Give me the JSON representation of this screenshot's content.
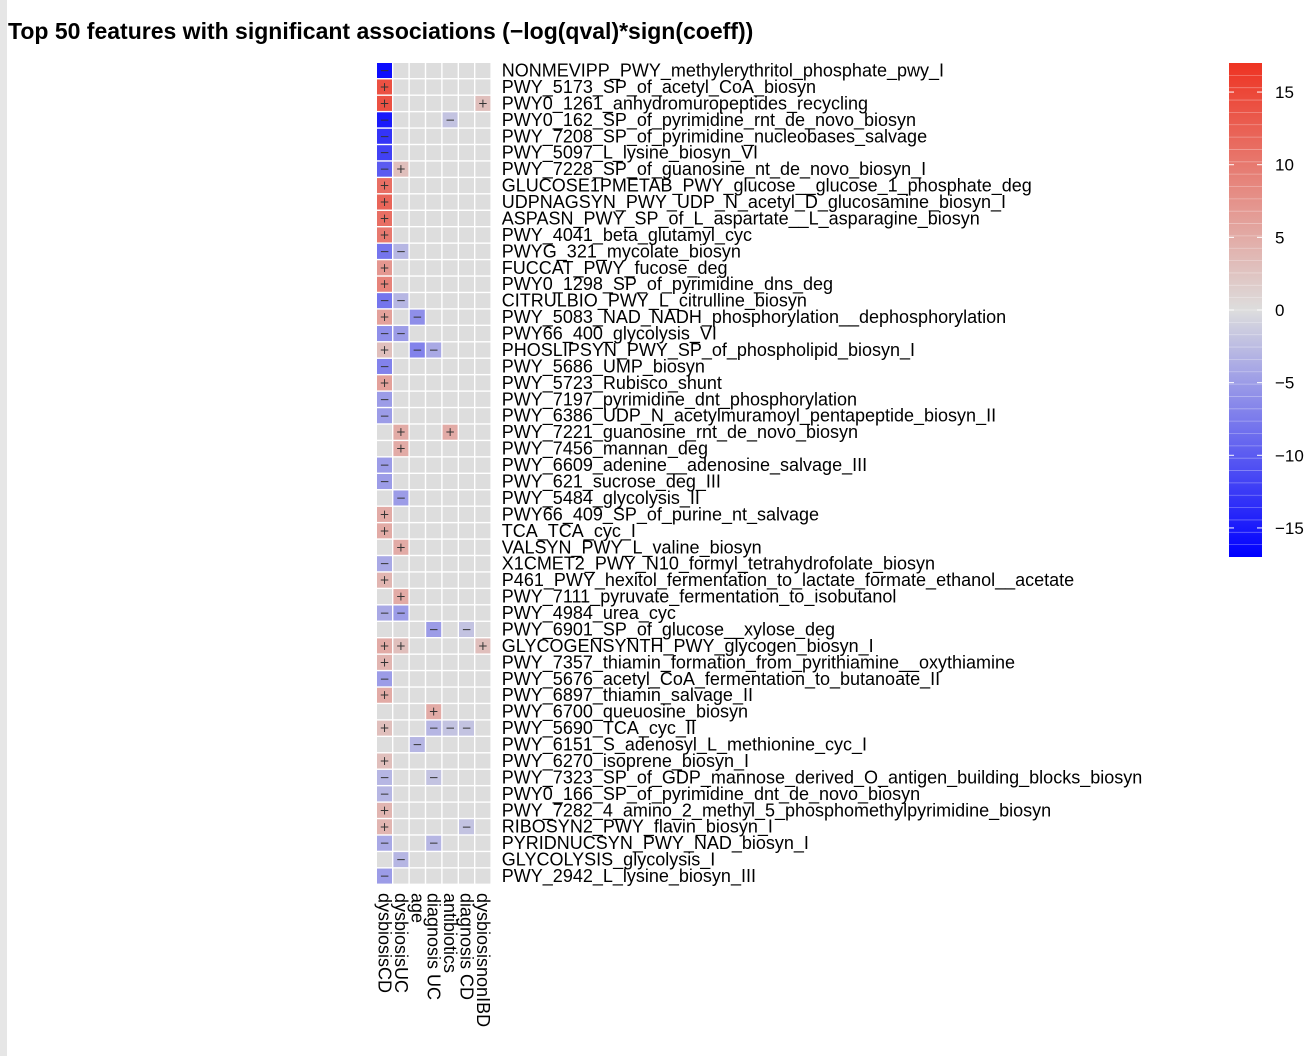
{
  "title": "Top 50 features with significant associations (−log(qval)*sign(coeff))",
  "chart_data": {
    "type": "heatmap",
    "columns": [
      "dysbiosisCD",
      "dysbiosisUC",
      "age",
      "diagnosis UC",
      "antibiotics",
      "diagnosis CD",
      "dysbiosisnonIBD"
    ],
    "rows": [
      "NONMEVIPP_PWY_methylerythritol_phosphate_pwy_I",
      "PWY_5173_SP_of_acetyl_CoA_biosyn",
      "PWY0_1261_anhydromuropeptides_recycling",
      "PWY0_162_SP_of_pyrimidine_rnt_de_novo_biosyn",
      "PWY_7208_SP_of_pyrimidine_nucleobases_salvage",
      "PWY_5097_L_lysine_biosyn_VI",
      "PWY_7228_SP_of_guanosine_nt_de_novo_biosyn_I",
      "GLUCOSE1PMETAB_PWY_glucose__glucose_1_phosphate_deg",
      "UDPNAGSYN_PWY_UDP_N_acetyl_D_glucosamine_biosyn_I",
      "ASPASN_PWY_SP_of_L_aspartate__L_asparagine_biosyn",
      "PWY_4041_beta_glutamyl_cyc",
      "PWYG_321_mycolate_biosyn",
      "FUCCAT_PWY_fucose_deg",
      "PWY0_1298_SP_of_pyrimidine_dns_deg",
      "CITRULBIO_PWY_L_citrulline_biosyn",
      "PWY_5083_NAD_NADH_phosphorylation__dephosphorylation",
      "PWY66_400_glycolysis_VI",
      "PHOSLIPSYN_PWY_SP_of_phospholipid_biosyn_I",
      "PWY_5686_UMP_biosyn",
      "PWY_5723_Rubisco_shunt",
      "PWY_7197_pyrimidine_dnt_phosphorylation",
      "PWY_6386_UDP_N_acetylmuramoyl_pentapeptide_biosyn_II",
      "PWY_7221_guanosine_rnt_de_novo_biosyn",
      "PWY_7456_mannan_deg",
      "PWY_6609_adenine__adenosine_salvage_III",
      "PWY_621_sucrose_deg_III",
      "PWY_5484_glycolysis_II",
      "PWY66_409_SP_of_purine_nt_salvage",
      "TCA_TCA_cyc_I",
      "VALSYN_PWY_L_valine_biosyn",
      "X1CMET2_PWY_N10_formyl_tetrahydrofolate_biosyn",
      "P461_PWY_hexitol_fermentation_to_lactate_formate_ethanol__acetate",
      "PWY_7111_pyruvate_fermentation_to_isobutanol",
      "PWY_4984_urea_cyc",
      "PWY_6901_SP_of_glucose__xylose_deg",
      "GLYCOGENSYNTH_PWY_glycogen_biosyn_I",
      "PWY_7357_thiamin_formation_from_pyrithiamine__oxythiamine",
      "PWY_5676_acetyl_CoA_fermentation_to_butanoate_II",
      "PWY_6897_thiamin_salvage_II",
      "PWY_6700_queuosine_biosyn",
      "PWY_5690_TCA_cyc_II",
      "PWY_6151_S_adenosyl_L_methionine_cyc_I",
      "PWY_6270_isoprene_biosyn_I",
      "PWY_7323_SP_of_GDP_mannose_derived_O_antigen_building_blocks_biosyn",
      "PWY0_166_SP_of_pyrimidine_dnt_de_novo_biosyn",
      "PWY_7282_4_amino_2_methyl_5_phosphomethylpyrimidine_biosyn",
      "RIBOSYN2_PWY_flavin_biosyn_I",
      "PYRIDNUCSYN_PWY_NAD_biosyn_I",
      "GLYCOLYSIS_glycolysis_I",
      "PWY_2942_L_lysine_biosyn_III"
    ],
    "values": [
      [
        -16,
        0,
        0,
        0,
        0,
        0,
        0
      ],
      [
        14,
        0,
        0,
        0,
        0,
        0,
        0
      ],
      [
        14,
        0,
        0,
        0,
        0,
        0,
        3
      ],
      [
        -15,
        0,
        0,
        0,
        -2,
        0,
        0
      ],
      [
        -13,
        0,
        0,
        0,
        0,
        0,
        0
      ],
      [
        -12,
        0,
        0,
        0,
        0,
        0,
        0
      ],
      [
        -10,
        3,
        0,
        0,
        0,
        0,
        0
      ],
      [
        11,
        0,
        0,
        0,
        0,
        0,
        0
      ],
      [
        12,
        0,
        0,
        0,
        0,
        0,
        0
      ],
      [
        11,
        0,
        0,
        0,
        0,
        0,
        0
      ],
      [
        10,
        0,
        0,
        0,
        0,
        0,
        0
      ],
      [
        -8,
        -3,
        0,
        0,
        0,
        0,
        0
      ],
      [
        7,
        0,
        0,
        0,
        0,
        0,
        0
      ],
      [
        9,
        0,
        0,
        0,
        0,
        0,
        0
      ],
      [
        -8,
        -3,
        0,
        0,
        0,
        0,
        0
      ],
      [
        6,
        0,
        -6,
        0,
        0,
        0,
        0
      ],
      [
        -6,
        -5,
        0,
        0,
        0,
        0,
        0
      ],
      [
        3,
        0,
        -7,
        -4,
        0,
        0,
        0
      ],
      [
        -7,
        0,
        0,
        0,
        0,
        0,
        0
      ],
      [
        6,
        0,
        0,
        0,
        0,
        0,
        0
      ],
      [
        -5,
        0,
        0,
        0,
        0,
        0,
        0
      ],
      [
        -5,
        0,
        0,
        0,
        0,
        0,
        0
      ],
      [
        0,
        5,
        0,
        0,
        5,
        0,
        0
      ],
      [
        0,
        5,
        0,
        0,
        0,
        0,
        0
      ],
      [
        -5,
        0,
        0,
        0,
        0,
        0,
        0
      ],
      [
        -5,
        0,
        0,
        0,
        0,
        0,
        0
      ],
      [
        0,
        -5,
        0,
        0,
        0,
        0,
        0
      ],
      [
        5,
        0,
        0,
        0,
        0,
        0,
        0
      ],
      [
        5,
        0,
        0,
        0,
        0,
        0,
        0
      ],
      [
        0,
        5,
        0,
        0,
        0,
        0,
        0
      ],
      [
        -4,
        0,
        0,
        0,
        0,
        0,
        0
      ],
      [
        4,
        0,
        0,
        0,
        0,
        0,
        0
      ],
      [
        0,
        5,
        0,
        0,
        0,
        0,
        0
      ],
      [
        -4,
        -5,
        0,
        0,
        0,
        0,
        0
      ],
      [
        0,
        0,
        0,
        -5,
        0,
        -2,
        0
      ],
      [
        5,
        3,
        0,
        0,
        0,
        0,
        3
      ],
      [
        4,
        0,
        0,
        0,
        0,
        0,
        0
      ],
      [
        -5,
        0,
        0,
        0,
        0,
        0,
        0
      ],
      [
        5,
        0,
        0,
        0,
        0,
        0,
        0
      ],
      [
        0,
        0,
        0,
        5,
        0,
        0,
        0
      ],
      [
        3,
        0,
        0,
        -3,
        -2,
        -2,
        0
      ],
      [
        0,
        0,
        -3,
        0,
        0,
        0,
        0
      ],
      [
        3,
        0,
        0,
        0,
        0,
        0,
        0
      ],
      [
        -3,
        0,
        0,
        -2,
        0,
        0,
        0
      ],
      [
        -3,
        0,
        0,
        0,
        0,
        0,
        0
      ],
      [
        4,
        0,
        0,
        0,
        0,
        0,
        0
      ],
      [
        4,
        0,
        0,
        0,
        0,
        -2,
        0
      ],
      [
        -4,
        0,
        0,
        -3,
        0,
        0,
        0
      ],
      [
        0,
        -3,
        0,
        0,
        0,
        0,
        0
      ],
      [
        -5,
        0,
        0,
        0,
        0,
        0,
        0
      ]
    ],
    "colorbar": {
      "ticks": [
        15,
        10,
        5,
        0,
        -5,
        -10,
        -15
      ],
      "range": [
        -17,
        17
      ],
      "low_color": "#0000ff",
      "mid_color": "#dddddd",
      "high_color": "#ee3322"
    },
    "annotations": {
      "positive": "+",
      "negative": "−"
    }
  }
}
